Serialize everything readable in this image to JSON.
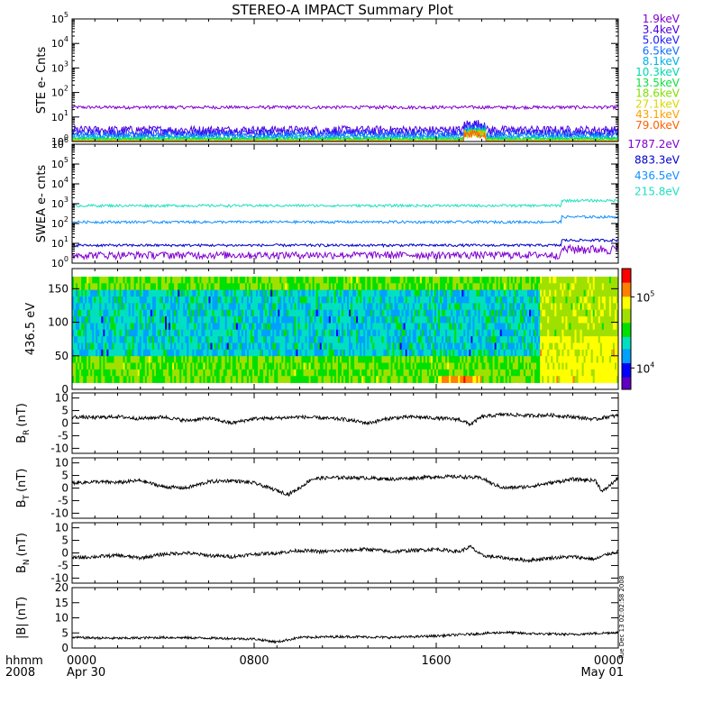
{
  "title": "STEREO-A IMPACT Summary Plot",
  "time_axis": {
    "ticks": [
      {
        "major": "0000",
        "minor": "Apr 30",
        "hour": 0
      },
      {
        "major": "0800",
        "minor": "",
        "hour": 8
      },
      {
        "major": "1600",
        "minor": "",
        "hour": 16
      },
      {
        "major": "0000",
        "minor": "May 01",
        "hour": 24
      }
    ],
    "unit_label": "hhmm",
    "year_label": "2008",
    "range_hours": [
      0,
      24
    ]
  },
  "footer_note": "Tue Dec 13 02:02:58 2008",
  "colors": {
    "ste": [
      "#8000d0",
      "#5000e0",
      "#2020ff",
      "#1070ff",
      "#00b0e8",
      "#00d8b0",
      "#10e040",
      "#80e000",
      "#d8d800",
      "#ffa000",
      "#ff6000",
      "#e00000"
    ],
    "swea": [
      "#8000d0",
      "#0000c8",
      "#1090ff",
      "#20e0c0"
    ],
    "spectrogram_scale": [
      "#6000c0",
      "#0000ff",
      "#00a0ff",
      "#00e0c0",
      "#00e000",
      "#a0e000",
      "#ffff00",
      "#ff8000",
      "#ff0000"
    ]
  },
  "chart_data": [
    {
      "type": "line",
      "panel": "STE",
      "ylabel": "STE e- Cnts",
      "yscale": "log",
      "ylim": [
        1,
        100000
      ],
      "ytick_exponents": [
        0,
        1,
        2,
        3,
        4,
        5
      ],
      "series": [
        {
          "name": "1.9keV",
          "level": 25
        },
        {
          "name": "3.4keV",
          "level": 2.2
        },
        {
          "name": "5.0keV",
          "level": 1.8
        },
        {
          "name": "6.5keV",
          "level": 1.5
        },
        {
          "name": "8.1keV",
          "level": 1.3
        },
        {
          "name": "10.3keV",
          "level": 1.2
        },
        {
          "name": "13.5keV",
          "level": 1.15
        },
        {
          "name": "18.6keV",
          "level": 1.1
        },
        {
          "name": "27.1keV",
          "level": 1.05
        },
        {
          "name": "43.1keV",
          "level": 1.03
        },
        {
          "name": "79.0keV",
          "level": 1.01
        }
      ]
    },
    {
      "type": "line",
      "panel": "SWEA",
      "ylabel": "SWEA e- cnts",
      "yscale": "log",
      "ylim": [
        1,
        1000000
      ],
      "ytick_exponents": [
        0,
        1,
        2,
        3,
        4,
        5,
        6
      ],
      "series": [
        {
          "name": "1787.2eV",
          "level": 2
        },
        {
          "name": "883.3eV",
          "level": 8
        },
        {
          "name": "436.5eV",
          "level": 120
        },
        {
          "name": "215.8eV",
          "level": 800
        }
      ]
    },
    {
      "type": "heatmap",
      "panel": "PAD",
      "ylabel": "436.5 eV",
      "ylim": [
        0,
        180
      ],
      "yticks": [
        0,
        50,
        100,
        150
      ],
      "colorbar": {
        "scale": "log",
        "tick_labels": [
          "10^4",
          "10^5"
        ],
        "tick_values": [
          10000,
          100000
        ],
        "range": [
          5000,
          250000
        ]
      }
    },
    {
      "type": "line",
      "panel": "BR",
      "ylabel": "B",
      "ylabel_sub": "R",
      "ylabel_unit": "(nT)",
      "ylim": [
        -12,
        12
      ],
      "yticks": [
        -10,
        -5,
        0,
        5,
        10
      ],
      "points": [
        [
          0,
          2.5
        ],
        [
          1,
          2.2
        ],
        [
          2,
          2.6
        ],
        [
          3,
          1.8
        ],
        [
          4,
          2.5
        ],
        [
          5,
          1.0
        ],
        [
          6,
          2.0
        ],
        [
          7,
          0
        ],
        [
          8,
          1.8
        ],
        [
          9,
          2.0
        ],
        [
          10,
          2.5
        ],
        [
          11,
          2.0
        ],
        [
          12,
          1.5
        ],
        [
          13,
          0
        ],
        [
          14,
          2.0
        ],
        [
          15,
          2.5
        ],
        [
          16,
          2.0
        ],
        [
          17,
          1.5
        ],
        [
          17.5,
          -0.5
        ],
        [
          18,
          2.5
        ],
        [
          19,
          3.5
        ],
        [
          20,
          3.0
        ],
        [
          21,
          3.2
        ],
        [
          22,
          2.5
        ],
        [
          23,
          1.5
        ],
        [
          23.5,
          2.5
        ],
        [
          24,
          3.0
        ]
      ]
    },
    {
      "type": "line",
      "panel": "BT",
      "ylabel": "B",
      "ylabel_sub": "T",
      "ylabel_unit": "(nT)",
      "ylim": [
        -12,
        12
      ],
      "yticks": [
        -10,
        -5,
        0,
        5,
        10
      ],
      "points": [
        [
          0,
          2.0
        ],
        [
          1,
          2.5
        ],
        [
          2,
          2.2
        ],
        [
          3,
          3.0
        ],
        [
          4,
          0.5
        ],
        [
          5,
          0
        ],
        [
          6,
          2.5
        ],
        [
          7,
          3.0
        ],
        [
          8,
          2.0
        ],
        [
          9,
          -1.0
        ],
        [
          9.5,
          -2.5
        ],
        [
          10,
          0
        ],
        [
          10.5,
          3.5
        ],
        [
          11,
          4.0
        ],
        [
          12,
          4.2
        ],
        [
          13,
          4.0
        ],
        [
          14,
          3.5
        ],
        [
          15,
          4.0
        ],
        [
          16,
          4.5
        ],
        [
          17,
          4.5
        ],
        [
          18,
          4.0
        ],
        [
          18.5,
          1.5
        ],
        [
          19,
          0
        ],
        [
          20,
          0.5
        ],
        [
          21,
          2.0
        ],
        [
          22,
          3.5
        ],
        [
          23,
          3.0
        ],
        [
          23.3,
          -1.5
        ],
        [
          24,
          4.0
        ]
      ]
    },
    {
      "type": "line",
      "panel": "BN",
      "ylabel": "B",
      "ylabel_sub": "N",
      "ylabel_unit": "(nT)",
      "ylim": [
        -12,
        12
      ],
      "yticks": [
        -10,
        -5,
        0,
        5,
        10
      ],
      "points": [
        [
          0,
          -2.0
        ],
        [
          1,
          -1.5
        ],
        [
          2,
          -1.0
        ],
        [
          3,
          -2.0
        ],
        [
          4,
          -0.5
        ],
        [
          5,
          0
        ],
        [
          6,
          -1.0
        ],
        [
          7,
          -1.5
        ],
        [
          8,
          -0.5
        ],
        [
          9,
          0
        ],
        [
          10,
          1.0
        ],
        [
          11,
          0.5
        ],
        [
          12,
          1.0
        ],
        [
          13,
          1.5
        ],
        [
          14,
          0.5
        ],
        [
          15,
          1.0
        ],
        [
          16,
          1.5
        ],
        [
          17,
          0.5
        ],
        [
          17.5,
          2.5
        ],
        [
          18,
          -1.0
        ],
        [
          19,
          -2.0
        ],
        [
          20,
          -3.0
        ],
        [
          21,
          -2.0
        ],
        [
          22,
          -1.5
        ],
        [
          23,
          -2.5
        ],
        [
          23.5,
          -0.5
        ],
        [
          24,
          0.5
        ]
      ]
    },
    {
      "type": "line",
      "panel": "BMAG",
      "ylabel": "|B|",
      "ylabel_unit": "(nT)",
      "ylim": [
        0,
        20
      ],
      "yticks": [
        0,
        5,
        10,
        15,
        20
      ],
      "points": [
        [
          0,
          3.5
        ],
        [
          2,
          3.2
        ],
        [
          4,
          3.5
        ],
        [
          6,
          3.3
        ],
        [
          8,
          3.0
        ],
        [
          9,
          2.0
        ],
        [
          10,
          3.5
        ],
        [
          12,
          3.8
        ],
        [
          14,
          3.5
        ],
        [
          16,
          4.0
        ],
        [
          18,
          4.8
        ],
        [
          19,
          5.2
        ],
        [
          20,
          4.8
        ],
        [
          22,
          4.5
        ],
        [
          24,
          5.2
        ]
      ]
    }
  ]
}
